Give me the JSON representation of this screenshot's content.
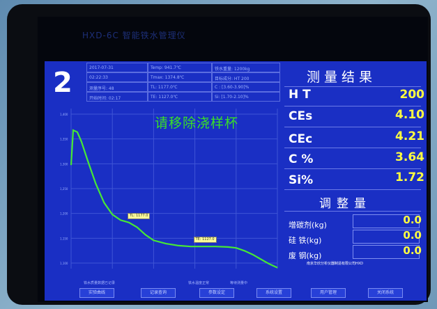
{
  "app_title": "HXD-6C 智能铁水管理仪",
  "furnace_number": "2",
  "info": {
    "date": "2017-07-31",
    "time": "02:22:33",
    "test_no": "测量序号: 48",
    "start_time": "开始时间: 02:17",
    "temp": "Temp: 941.7℃",
    "tmax": "Tmax: 1374.8℃",
    "tl": "TL: 1177.0℃",
    "te": "TE: 1127.0℃",
    "iron_weight": "铁水重量: 1200kg",
    "target_grade": "目标成分: HT 200",
    "c_range": "C : [3.60-3.90]%",
    "si_range": "Si: [1.70-2.10]%"
  },
  "message": "请移除浇样杯",
  "results": {
    "heading": "测量结果",
    "items": [
      {
        "label": "H T",
        "value": "200"
      },
      {
        "label": "CEs",
        "value": "4.10"
      },
      {
        "label": "CEc",
        "value": "4.21"
      },
      {
        "label": "C %",
        "value": "3.64"
      },
      {
        "label": "Si%",
        "value": "1.72"
      }
    ]
  },
  "adjustment": {
    "heading": "调整量",
    "items": [
      {
        "label": "增碳剂(kg)",
        "value": "0.0"
      },
      {
        "label": "硅  铁(kg)",
        "value": "0.0"
      },
      {
        "label": "废  钢(kg)",
        "value": "0.0"
      }
    ]
  },
  "company": "南京华欣分析仪器制造有限公司HXD",
  "chart_data": {
    "type": "line",
    "title": "",
    "xlabel": "",
    "ylabel": "",
    "y_ticks": [
      "1,400",
      "1,350",
      "1,300",
      "1,250",
      "1,200",
      "1,150",
      "1,100"
    ],
    "ylim": [
      1080,
      1420
    ],
    "xlim": [
      0,
      100
    ],
    "series": [
      {
        "color": "#46e836",
        "x": [
          0,
          1,
          3,
          5,
          8,
          12,
          16,
          20,
          24,
          28,
          32,
          36,
          40,
          46,
          52,
          58,
          64,
          70,
          76,
          80,
          84,
          88,
          92,
          96,
          100
        ],
        "y": [
          1300,
          1374,
          1370,
          1350,
          1310,
          1260,
          1220,
          1195,
          1183,
          1178,
          1168,
          1152,
          1140,
          1133,
          1129,
          1127,
          1127,
          1127,
          1126,
          1124,
          1118,
          1110,
          1100,
          1090,
          1082
        ]
      }
    ],
    "annotations": [
      {
        "text": "TL: 1177.0",
        "x": 28,
        "y": 1177
      },
      {
        "text": "TE: 1127.0",
        "x": 60,
        "y": 1127
      }
    ],
    "grid": true
  },
  "buttons": [
    "实验曲线",
    "记录查询",
    "参数设定",
    "系统设置",
    "用户管理",
    "关闭系统"
  ],
  "status": [
    "铁水质量数据已记录",
    "铁水温度正常",
    "等待测量中"
  ]
}
